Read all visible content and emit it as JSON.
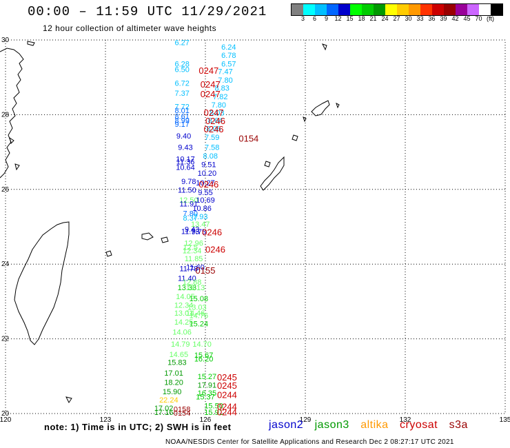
{
  "title": "00:00 – 11:59 UTC 11/29/2021",
  "subtitle": "12 hour collection of altimeter wave heights",
  "colorbar": {
    "colors": [
      "#808080",
      "#00ffff",
      "#00bfff",
      "#0066ff",
      "#0000cc",
      "#00ff00",
      "#00cc00",
      "#009900",
      "#ffff00",
      "#ffcc00",
      "#ff9900",
      "#ff3300",
      "#cc0000",
      "#990000",
      "#990099",
      "#cc66ff",
      "#ffffff",
      "#000000"
    ],
    "labels": [
      "3",
      "6",
      "9",
      "12",
      "15",
      "18",
      "21",
      "24",
      "27",
      "30",
      "33",
      "36",
      "39",
      "42",
      "45",
      "70",
      "(ft)"
    ]
  },
  "axes": {
    "x_ticks": [
      "120",
      "123",
      "126",
      "129",
      "132",
      "135"
    ],
    "y_ticks": [
      "30",
      "28",
      "26",
      "24",
      "22",
      "20"
    ]
  },
  "note": "note: 1) Time is in UTC; 2) SWH is in feet",
  "legend": [
    {
      "label": "jason2",
      "color": "#0000cc"
    },
    {
      "label": "jason3",
      "color": "#009900"
    },
    {
      "label": "altika",
      "color": "#ff9900"
    },
    {
      "label": "cryosat",
      "color": "#cc0000"
    },
    {
      "label": "s3a",
      "color": "#990000"
    }
  ],
  "credit": "NOAA/NESDIS Center for Satellite Applications and Research    Dec  2 08:27:17 UTC 2021",
  "observations": [
    {
      "v": "6.27",
      "lon": 125.3,
      "lat": 29.94,
      "c": "#00bfff"
    },
    {
      "v": "6.24",
      "lon": 126.7,
      "lat": 29.82,
      "c": "#00bfff"
    },
    {
      "v": "6.78",
      "lon": 126.7,
      "lat": 29.59,
      "c": "#00bfff"
    },
    {
      "v": "6.28",
      "lon": 125.3,
      "lat": 29.36,
      "c": "#00bfff"
    },
    {
      "v": "6.57",
      "lon": 126.7,
      "lat": 29.36,
      "c": "#00bfff"
    },
    {
      "v": "6.50",
      "lon": 125.3,
      "lat": 29.22,
      "c": "#00bfff"
    },
    {
      "v": "7.47",
      "lon": 126.6,
      "lat": 29.16,
      "c": "#00bfff"
    },
    {
      "v": "7.80",
      "lon": 126.6,
      "lat": 28.93,
      "c": "#00bfff"
    },
    {
      "v": "6.72",
      "lon": 125.3,
      "lat": 28.85,
      "c": "#00bfff"
    },
    {
      "v": "8.83",
      "lon": 126.5,
      "lat": 28.72,
      "c": "#00bfff"
    },
    {
      "v": "7.37",
      "lon": 125.3,
      "lat": 28.58,
      "c": "#00bfff"
    },
    {
      "v": "7.82",
      "lon": 126.45,
      "lat": 28.49,
      "c": "#00bfff"
    },
    {
      "v": "7.80",
      "lon": 126.4,
      "lat": 28.27,
      "c": "#00bfff"
    },
    {
      "v": "7.72",
      "lon": 125.3,
      "lat": 28.22,
      "c": "#00bfff"
    },
    {
      "v": "8.01",
      "lon": 125.3,
      "lat": 28.12,
      "c": "#0066ff"
    },
    {
      "v": "8.03",
      "lon": 126.35,
      "lat": 28.05,
      "c": "#00bfff"
    },
    {
      "v": "8.61",
      "lon": 125.3,
      "lat": 27.96,
      "c": "#0066ff"
    },
    {
      "v": "8.64",
      "lon": 126.3,
      "lat": 27.85,
      "c": "#00bfff"
    },
    {
      "v": "8.99",
      "lon": 125.3,
      "lat": 27.85,
      "c": "#0066ff"
    },
    {
      "v": "9.17",
      "lon": 125.3,
      "lat": 27.75,
      "c": "#0066ff"
    },
    {
      "v": "8.06",
      "lon": 126.25,
      "lat": 27.63,
      "c": "#00bfff"
    },
    {
      "v": "9.40",
      "lon": 125.35,
      "lat": 27.44,
      "c": "#0000cc"
    },
    {
      "v": "7.59",
      "lon": 126.2,
      "lat": 27.4,
      "c": "#00bfff"
    },
    {
      "v": "9.43",
      "lon": 125.4,
      "lat": 27.13,
      "c": "#0000cc"
    },
    {
      "v": "7.58",
      "lon": 126.2,
      "lat": 27.13,
      "c": "#00bfff"
    },
    {
      "v": "10.17",
      "lon": 125.4,
      "lat": 26.82,
      "c": "#0000cc"
    },
    {
      "v": "8.08",
      "lon": 126.15,
      "lat": 26.9,
      "c": "#00bfff"
    },
    {
      "v": "11.36",
      "lon": 125.4,
      "lat": 26.74,
      "c": "#0000cc"
    },
    {
      "v": "9.51",
      "lon": 126.1,
      "lat": 26.67,
      "c": "#0000cc"
    },
    {
      "v": "10.64",
      "lon": 125.4,
      "lat": 26.6,
      "c": "#0000cc"
    },
    {
      "v": "10.20",
      "lon": 126.05,
      "lat": 26.44,
      "c": "#0000cc"
    },
    {
      "v": "9.78",
      "lon": 125.5,
      "lat": 26.22,
      "c": "#0000cc"
    },
    {
      "v": "10.27",
      "lon": 126.0,
      "lat": 26.18,
      "c": "#0000cc"
    },
    {
      "v": "11.50",
      "lon": 125.45,
      "lat": 25.99,
      "c": "#0000cc"
    },
    {
      "v": "9.55",
      "lon": 126.0,
      "lat": 25.92,
      "c": "#0000cc"
    },
    {
      "v": "12.50",
      "lon": 125.5,
      "lat": 25.72,
      "c": "#66ff66"
    },
    {
      "v": "10.69",
      "lon": 126.0,
      "lat": 25.72,
      "c": "#0000cc"
    },
    {
      "v": "11.91",
      "lon": 125.5,
      "lat": 25.62,
      "c": "#0000cc"
    },
    {
      "v": "10.86",
      "lon": 125.9,
      "lat": 25.5,
      "c": "#0000cc"
    },
    {
      "v": "7.80",
      "lon": 125.55,
      "lat": 25.36,
      "c": "#0066ff"
    },
    {
      "v": "7.93",
      "lon": 125.85,
      "lat": 25.28,
      "c": "#00bfff"
    },
    {
      "v": "8.37",
      "lon": 125.55,
      "lat": 25.24,
      "c": "#00bfff"
    },
    {
      "v": "13.47",
      "lon": 125.85,
      "lat": 25.07,
      "c": "#66ff66"
    },
    {
      "v": "9.43",
      "lon": 125.6,
      "lat": 24.94,
      "c": "#0000cc"
    },
    {
      "v": "11.73",
      "lon": 125.55,
      "lat": 24.88,
      "c": "#0000cc"
    },
    {
      "v": "9.75",
      "lon": 125.8,
      "lat": 24.87,
      "c": "#0000cc"
    },
    {
      "v": "12.96",
      "lon": 125.65,
      "lat": 24.57,
      "c": "#66ff66"
    },
    {
      "v": "12.5",
      "lon": 125.55,
      "lat": 24.46,
      "c": "#66ff66"
    },
    {
      "v": "12.34",
      "lon": 125.6,
      "lat": 24.36,
      "c": "#66ff66"
    },
    {
      "v": "11.85",
      "lon": 125.65,
      "lat": 24.15,
      "c": "#66ff66"
    },
    {
      "v": "11.78",
      "lon": 125.5,
      "lat": 23.88,
      "c": "#0000cc"
    },
    {
      "v": "11.60",
      "lon": 125.7,
      "lat": 23.92,
      "c": "#0000cc"
    },
    {
      "v": "11.40",
      "lon": 125.45,
      "lat": 23.63,
      "c": "#0000cc"
    },
    {
      "v": "12.88",
      "lon": 125.6,
      "lat": 23.52,
      "c": "#66ff66"
    },
    {
      "v": "13.33",
      "lon": 125.45,
      "lat": 23.38,
      "c": "#00cc00"
    },
    {
      "v": "13.13",
      "lon": 125.7,
      "lat": 23.38,
      "c": "#66ff66"
    },
    {
      "v": "14.05",
      "lon": 125.4,
      "lat": 23.14,
      "c": "#66ff66"
    },
    {
      "v": "15.08",
      "lon": 125.8,
      "lat": 23.08,
      "c": "#00cc00"
    },
    {
      "v": "12.34",
      "lon": 125.35,
      "lat": 22.91,
      "c": "#66ff66"
    },
    {
      "v": "13.03",
      "lon": 125.75,
      "lat": 22.85,
      "c": "#66ff66"
    },
    {
      "v": "13.01",
      "lon": 125.35,
      "lat": 22.69,
      "c": "#66ff66"
    },
    {
      "v": "14.46",
      "lon": 125.7,
      "lat": 22.69,
      "c": "#66ff66"
    },
    {
      "v": "14.76",
      "lon": 125.8,
      "lat": 22.63,
      "c": "#66ff66"
    },
    {
      "v": "14.25",
      "lon": 125.35,
      "lat": 22.45,
      "c": "#66ff66"
    },
    {
      "v": "15.24",
      "lon": 125.8,
      "lat": 22.41,
      "c": "#00cc00"
    },
    {
      "v": "14.06",
      "lon": 125.3,
      "lat": 22.19,
      "c": "#66ff66"
    },
    {
      "v": "14.79",
      "lon": 125.25,
      "lat": 21.86,
      "c": "#66ff66"
    },
    {
      "v": "14.70",
      "lon": 125.9,
      "lat": 21.86,
      "c": "#66ff66"
    },
    {
      "v": "14.65",
      "lon": 125.2,
      "lat": 21.59,
      "c": "#66ff66"
    },
    {
      "v": "15.67",
      "lon": 125.95,
      "lat": 21.57,
      "c": "#00cc00"
    },
    {
      "v": "16.20",
      "lon": 125.95,
      "lat": 21.47,
      "c": "#00cc00"
    },
    {
      "v": "15.83",
      "lon": 125.15,
      "lat": 21.37,
      "c": "#009900"
    },
    {
      "v": "17.01",
      "lon": 125.05,
      "lat": 21.09,
      "c": "#009900"
    },
    {
      "v": "15.27",
      "lon": 126.05,
      "lat": 21.0,
      "c": "#00cc00"
    },
    {
      "v": "18.20",
      "lon": 125.05,
      "lat": 20.84,
      "c": "#009900"
    },
    {
      "v": "17.91",
      "lon": 126.05,
      "lat": 20.77,
      "c": "#009900"
    },
    {
      "v": "15.90",
      "lon": 125.0,
      "lat": 20.59,
      "c": "#009900"
    },
    {
      "v": "16.35",
      "lon": 126.05,
      "lat": 20.55,
      "c": "#00cc00"
    },
    {
      "v": "15.37",
      "lon": 126.0,
      "lat": 20.45,
      "c": "#00cc00"
    },
    {
      "v": "22.24",
      "lon": 124.9,
      "lat": 20.37,
      "c": "#ffcc00"
    },
    {
      "v": "15.50",
      "lon": 126.25,
      "lat": 20.21,
      "c": "#00cc00"
    },
    {
      "v": "17.02",
      "lon": 124.75,
      "lat": 20.15,
      "c": "#009900"
    },
    {
      "v": "17.16",
      "lon": 124.75,
      "lat": 20.04,
      "c": "#009900"
    },
    {
      "v": "15.91",
      "lon": 126.25,
      "lat": 20.04,
      "c": "#00cc00"
    },
    {
      "v": "0158",
      "lon": 125.3,
      "lat": 20.12,
      "c": "#990000"
    },
    {
      "v": "0154",
      "lon": 125.3,
      "lat": 20.02,
      "c": "#990000"
    }
  ],
  "pass_times": [
    {
      "v": "0247",
      "lon": 126.1,
      "lat": 29.19,
      "c": "#cc0000"
    },
    {
      "v": "0247",
      "lon": 126.15,
      "lat": 28.82,
      "c": "#cc0000"
    },
    {
      "v": "0247",
      "lon": 126.15,
      "lat": 28.56,
      "c": "#cc0000"
    },
    {
      "v": "0247",
      "lon": 126.25,
      "lat": 28.06,
      "c": "#cc0000"
    },
    {
      "v": "0246",
      "lon": 126.3,
      "lat": 27.84,
      "c": "#cc0000"
    },
    {
      "v": "0246",
      "lon": 126.25,
      "lat": 27.62,
      "c": "#cc0000"
    },
    {
      "v": "0154",
      "lon": 127.3,
      "lat": 27.37,
      "c": "#990000"
    },
    {
      "v": "0246",
      "lon": 126.1,
      "lat": 26.14,
      "c": "#cc0000"
    },
    {
      "v": "0246",
      "lon": 126.2,
      "lat": 24.86,
      "c": "#cc0000"
    },
    {
      "v": "0246",
      "lon": 126.3,
      "lat": 24.4,
      "c": "#cc0000"
    },
    {
      "v": "0155",
      "lon": 126.0,
      "lat": 23.84,
      "c": "#990000"
    },
    {
      "v": "0245",
      "lon": 126.65,
      "lat": 20.98,
      "c": "#cc0000"
    },
    {
      "v": "0245",
      "lon": 126.65,
      "lat": 20.76,
      "c": "#cc0000"
    },
    {
      "v": "0244",
      "lon": 126.65,
      "lat": 20.51,
      "c": "#cc0000"
    },
    {
      "v": "0244",
      "lon": 126.65,
      "lat": 20.19,
      "c": "#cc0000"
    },
    {
      "v": "0244",
      "lon": 126.65,
      "lat": 20.05,
      "c": "#cc0000"
    }
  ]
}
